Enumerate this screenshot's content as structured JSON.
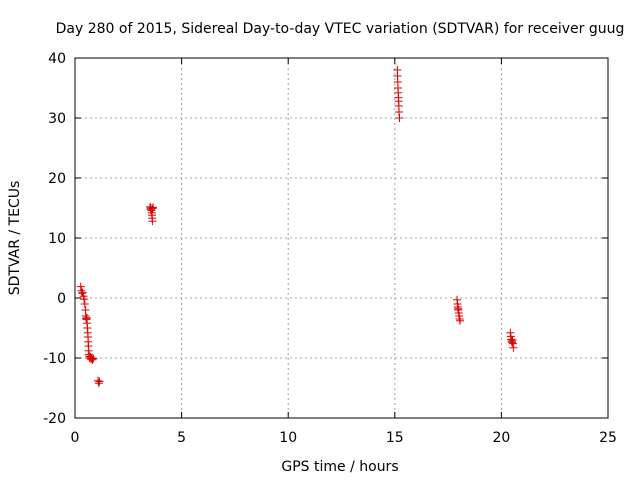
{
  "chart_data": {
    "type": "scatter",
    "title": "Day 280 of 2015, Sidereal Day-to-day VTEC variation (SDTVAR) for receiver guug",
    "xlabel": "GPS time / hours",
    "ylabel": "SDTVAR / TECUs",
    "xlim": [
      0,
      25
    ],
    "ylim": [
      -20,
      40
    ],
    "xticks": [
      0,
      5,
      10,
      15,
      20,
      25
    ],
    "yticks": [
      -20,
      -10,
      0,
      10,
      20,
      30,
      40
    ],
    "xtick_labels": [
      "0",
      "5",
      "10",
      "15",
      "20",
      "25"
    ],
    "ytick_labels": [
      "-20",
      "-10",
      "0",
      "10",
      "20",
      "30",
      "40"
    ],
    "grid": true,
    "marker": "+",
    "color": "#e00000",
    "series": [
      {
        "name": "SDTVAR",
        "points": [
          [
            0.27,
            1.9
          ],
          [
            0.3,
            1.2
          ],
          [
            0.33,
            0.8
          ],
          [
            0.36,
            0.9
          ],
          [
            0.4,
            0.3
          ],
          [
            0.43,
            -0.2
          ],
          [
            0.46,
            -1.0
          ],
          [
            0.49,
            -2.0
          ],
          [
            0.5,
            -3.0
          ],
          [
            0.52,
            -3.4
          ],
          [
            0.54,
            -3.6
          ],
          [
            0.56,
            -3.3
          ],
          [
            0.57,
            -4.2
          ],
          [
            0.58,
            -5.0
          ],
          [
            0.6,
            -5.8
          ],
          [
            0.61,
            -6.5
          ],
          [
            0.62,
            -7.3
          ],
          [
            0.63,
            -8.0
          ],
          [
            0.64,
            -8.8
          ],
          [
            0.65,
            -9.4
          ],
          [
            0.67,
            -9.7
          ],
          [
            0.69,
            -10.0
          ],
          [
            0.72,
            -9.8
          ],
          [
            0.75,
            -10.2
          ],
          [
            0.78,
            -10.0
          ],
          [
            0.82,
            -10.3
          ],
          [
            0.86,
            -10.1
          ],
          [
            1.08,
            -13.8
          ],
          [
            1.12,
            -14.2
          ],
          [
            1.15,
            -13.9
          ],
          [
            3.52,
            15.2
          ],
          [
            3.54,
            14.8
          ],
          [
            3.56,
            15.0
          ],
          [
            3.58,
            14.6
          ],
          [
            3.6,
            14.2
          ],
          [
            3.61,
            13.8
          ],
          [
            3.62,
            13.3
          ],
          [
            3.63,
            12.8
          ],
          [
            3.64,
            14.9
          ],
          [
            3.66,
            15.1
          ],
          [
            15.12,
            38.0
          ],
          [
            15.13,
            37.0
          ],
          [
            15.14,
            36.0
          ],
          [
            15.15,
            35.0
          ],
          [
            15.16,
            34.2
          ],
          [
            15.17,
            33.4
          ],
          [
            15.18,
            32.8
          ],
          [
            15.19,
            32.0
          ],
          [
            15.2,
            31.0
          ],
          [
            15.22,
            30.0
          ],
          [
            17.92,
            -0.3
          ],
          [
            17.94,
            -1.0
          ],
          [
            17.96,
            -1.5
          ],
          [
            17.97,
            -1.8
          ],
          [
            17.98,
            -2.0
          ],
          [
            18.0,
            -2.5
          ],
          [
            18.02,
            -3.0
          ],
          [
            18.04,
            -3.5
          ],
          [
            18.06,
            -3.8
          ],
          [
            20.42,
            -5.8
          ],
          [
            20.44,
            -6.4
          ],
          [
            20.46,
            -6.9
          ],
          [
            20.48,
            -7.2
          ],
          [
            20.5,
            -7.4
          ],
          [
            20.52,
            -7.0
          ],
          [
            20.54,
            -7.6
          ],
          [
            20.56,
            -8.3
          ]
        ]
      }
    ]
  }
}
